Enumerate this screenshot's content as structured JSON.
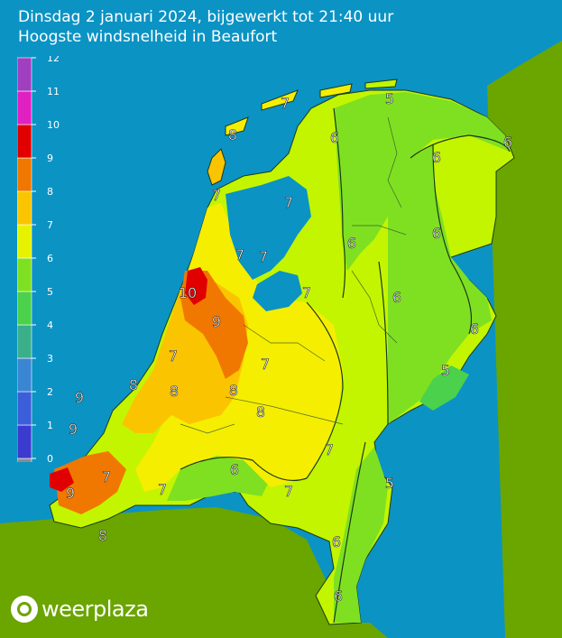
{
  "header": {
    "title": "Dinsdag 2 januari 2024, bijgewerkt tot 21:40 uur",
    "subtitle": "Hoogste windsnelheid in Beaufort"
  },
  "legend": {
    "levels": [
      {
        "label": "0",
        "color": "#8c8c8c"
      },
      {
        "label": "1",
        "color": "#3b3bd0"
      },
      {
        "label": "2",
        "color": "#3b5fd9"
      },
      {
        "label": "3",
        "color": "#3a86d2"
      },
      {
        "label": "4",
        "color": "#3ab08a"
      },
      {
        "label": "5",
        "color": "#4bd14b"
      },
      {
        "label": "6",
        "color": "#7fe021"
      },
      {
        "label": "7",
        "color": "#e6f200"
      },
      {
        "label": "8",
        "color": "#fbc400"
      },
      {
        "label": "9",
        "color": "#f07800"
      },
      {
        "label": "10",
        "color": "#e00000"
      },
      {
        "label": "11",
        "color": "#e020c0"
      },
      {
        "label": "12",
        "color": "#a040c0"
      }
    ]
  },
  "map_labels": [
    {
      "text": "7"
    },
    {
      "text": "5"
    },
    {
      "text": "8"
    },
    {
      "text": "6"
    },
    {
      "text": "6"
    },
    {
      "text": "6"
    },
    {
      "text": "7"
    },
    {
      "text": "7"
    },
    {
      "text": "7"
    },
    {
      "text": "7"
    },
    {
      "text": "6"
    },
    {
      "text": "6"
    },
    {
      "text": "10"
    },
    {
      "text": "7"
    },
    {
      "text": "6"
    },
    {
      "text": "9"
    },
    {
      "text": "6"
    },
    {
      "text": "7"
    },
    {
      "text": "7"
    },
    {
      "text": "5"
    },
    {
      "text": "8"
    },
    {
      "text": "8"
    },
    {
      "text": "8"
    },
    {
      "text": "9"
    },
    {
      "text": "8"
    },
    {
      "text": "9"
    },
    {
      "text": "7"
    },
    {
      "text": "6"
    },
    {
      "text": "7"
    },
    {
      "text": "5"
    },
    {
      "text": "9"
    },
    {
      "text": "7"
    },
    {
      "text": "7"
    },
    {
      "text": "6"
    },
    {
      "text": "8"
    },
    {
      "text": "6"
    }
  ],
  "brand": {
    "name": "weerplaza"
  },
  "colors": {
    "sea": "#0b93c4",
    "land_outside": "#6aa500"
  }
}
